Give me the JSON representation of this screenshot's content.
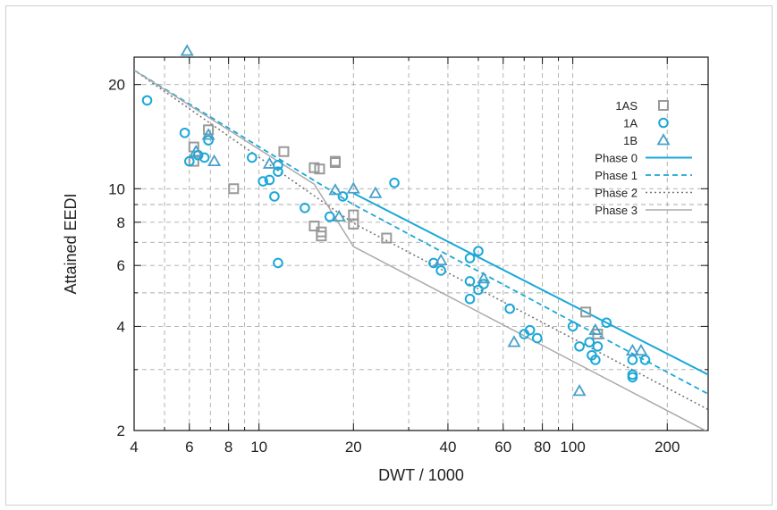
{
  "chart_data": {
    "type": "scatter",
    "title": "",
    "xlabel": "DWT / 1000",
    "ylabel": "Attained EEDI",
    "xscale": "log",
    "yscale": "log",
    "xlim": [
      4,
      270
    ],
    "ylim": [
      2,
      24
    ],
    "grid": true,
    "legend_position": "top-right",
    "x_ticks": [
      {
        "value": 4,
        "label": "4"
      },
      {
        "value": 6,
        "label": "6"
      },
      {
        "value": 8,
        "label": "8"
      },
      {
        "value": 10,
        "label": "10"
      },
      {
        "value": 20,
        "label": "20"
      },
      {
        "value": 40,
        "label": "40"
      },
      {
        "value": 60,
        "label": "60"
      },
      {
        "value": 80,
        "label": "80"
      },
      {
        "value": 100,
        "label": "100"
      },
      {
        "value": 200,
        "label": "200"
      }
    ],
    "x_minor_gridlines": [
      5,
      7,
      9,
      30,
      50,
      70,
      90
    ],
    "y_ticks": [
      {
        "value": 2,
        "label": "2"
      },
      {
        "value": 4,
        "label": "4"
      },
      {
        "value": 6,
        "label": "6"
      },
      {
        "value": 8,
        "label": "8"
      },
      {
        "value": 10,
        "label": "10"
      },
      {
        "value": 20,
        "label": "20"
      }
    ],
    "y_minor_gridlines": [
      3,
      5,
      7,
      9
    ],
    "colors": {
      "1AS": "#999999",
      "1A": "#1aa8d8",
      "1B": "#4aa0c8",
      "phase0": "#1aa8d8",
      "phase1": "#1aa8d8",
      "phase2": "#777777",
      "phase3": "#aaaaaa"
    },
    "series": [
      {
        "name": "1AS",
        "marker": "square",
        "points": [
          [
            6.2,
            12.0
          ],
          [
            6.2,
            13.2
          ],
          [
            6.9,
            14.8
          ],
          [
            8.3,
            10.0
          ],
          [
            12.0,
            12.8
          ],
          [
            15.0,
            11.5
          ],
          [
            15.6,
            11.4
          ],
          [
            17.5,
            12.0
          ],
          [
            17.5,
            11.9
          ],
          [
            15.0,
            7.8
          ],
          [
            15.8,
            7.5
          ],
          [
            15.8,
            7.3
          ],
          [
            20.0,
            7.9
          ],
          [
            20.0,
            8.4
          ],
          [
            25.5,
            7.2
          ],
          [
            110.0,
            4.4
          ],
          [
            120.0,
            3.8
          ]
        ]
      },
      {
        "name": "1A",
        "marker": "circle",
        "points": [
          [
            4.4,
            18.0
          ],
          [
            5.8,
            14.5
          ],
          [
            6.0,
            12.0
          ],
          [
            6.4,
            12.5
          ],
          [
            6.7,
            12.3
          ],
          [
            6.9,
            13.8
          ],
          [
            9.5,
            12.3
          ],
          [
            10.3,
            10.5
          ],
          [
            10.8,
            10.6
          ],
          [
            11.5,
            11.7
          ],
          [
            11.5,
            11.2
          ],
          [
            11.2,
            9.5
          ],
          [
            11.5,
            6.1
          ],
          [
            14.0,
            8.8
          ],
          [
            16.8,
            8.3
          ],
          [
            18.5,
            9.5
          ],
          [
            27.0,
            10.4
          ],
          [
            36.0,
            6.1
          ],
          [
            38.0,
            5.8
          ],
          [
            47.0,
            6.3
          ],
          [
            47.0,
            5.4
          ],
          [
            47.0,
            4.8
          ],
          [
            50.0,
            6.6
          ],
          [
            50.0,
            5.1
          ],
          [
            52.0,
            5.3
          ],
          [
            63.0,
            4.5
          ],
          [
            70.0,
            3.8
          ],
          [
            73.0,
            3.9
          ],
          [
            77.0,
            3.7
          ],
          [
            100.0,
            4.0
          ],
          [
            105.0,
            3.5
          ],
          [
            113.0,
            3.6
          ],
          [
            115.0,
            3.3
          ],
          [
            118.0,
            3.2
          ],
          [
            120.0,
            3.5
          ],
          [
            128.0,
            4.1
          ],
          [
            155.0,
            3.2
          ],
          [
            155.0,
            2.9
          ],
          [
            155.0,
            2.85
          ],
          [
            170.0,
            3.2
          ]
        ]
      },
      {
        "name": "1B",
        "marker": "triangle",
        "points": [
          [
            5.9,
            25.0
          ],
          [
            6.3,
            12.8
          ],
          [
            6.9,
            14.3
          ],
          [
            7.2,
            12.0
          ],
          [
            10.8,
            11.8
          ],
          [
            17.5,
            9.9
          ],
          [
            18.0,
            8.3
          ],
          [
            20.0,
            10.0
          ],
          [
            23.5,
            9.7
          ],
          [
            38.0,
            6.2
          ],
          [
            52.0,
            5.5
          ],
          [
            65.0,
            3.6
          ],
          [
            105.0,
            2.6
          ],
          [
            118.0,
            3.9
          ],
          [
            155.0,
            3.4
          ],
          [
            165.0,
            3.4
          ]
        ]
      }
    ],
    "lines": [
      {
        "name": "Phase 0",
        "style": "solid",
        "points": [
          [
            20,
            9.7
          ],
          [
            270,
            2.9
          ]
        ]
      },
      {
        "name": "Phase 1",
        "style": "dashed",
        "points": [
          [
            4,
            22.0
          ],
          [
            20,
            9.0
          ],
          [
            270,
            2.55
          ]
        ]
      },
      {
        "name": "Phase 2",
        "style": "dotted",
        "points": [
          [
            4,
            22.0
          ],
          [
            20,
            7.95
          ],
          [
            270,
            2.3
          ]
        ]
      },
      {
        "name": "Phase 3",
        "style": "solid",
        "points": [
          [
            4,
            22.0
          ],
          [
            15,
            10.3
          ],
          [
            20,
            6.8
          ],
          [
            270,
            1.98
          ]
        ]
      }
    ]
  }
}
